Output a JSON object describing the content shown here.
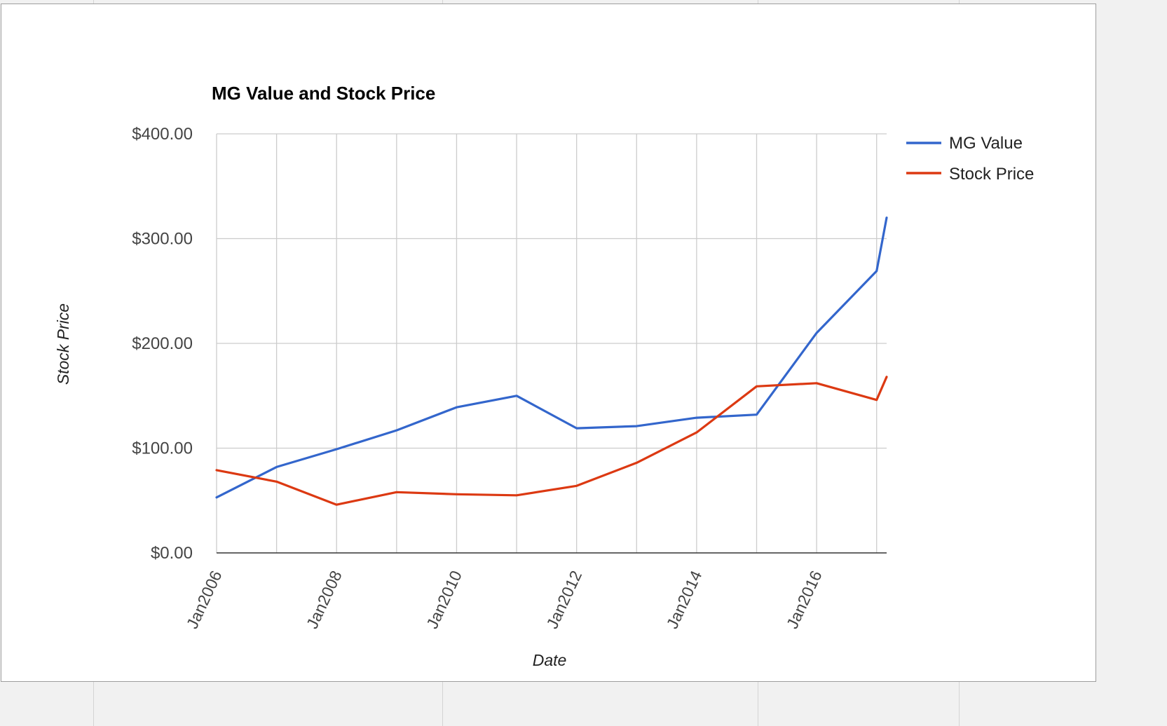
{
  "chart_data": {
    "type": "line",
    "title": "MG Value and Stock Price",
    "xlabel": "Date",
    "ylabel": "Stock Price",
    "xlim": [
      "2006-01",
      "2017-03"
    ],
    "ylim": [
      0,
      400
    ],
    "y_ticks": [
      "$0.00",
      "$100.00",
      "$200.00",
      "$300.00",
      "$400.00"
    ],
    "x_ticks": [
      "Jan2006",
      "Jan2008",
      "Jan2010",
      "Jan2012",
      "Jan2014",
      "Jan2016"
    ],
    "grid": true,
    "legend_position": "right",
    "x": [
      "2006-01",
      "2007-01",
      "2008-01",
      "2009-01",
      "2010-01",
      "2011-01",
      "2012-01",
      "2013-01",
      "2014-01",
      "2015-01",
      "2016-01",
      "2017-01",
      "2017-03"
    ],
    "series": [
      {
        "name": "MG Value",
        "color": "#3366cc",
        "values": [
          53,
          82,
          99,
          117,
          139,
          150,
          119,
          121,
          129,
          132,
          210,
          269,
          320
        ]
      },
      {
        "name": "Stock Price",
        "color": "#dc3912",
        "values": [
          79,
          68,
          46,
          58,
          56,
          55,
          64,
          86,
          115,
          159,
          162,
          146,
          168
        ]
      }
    ]
  }
}
